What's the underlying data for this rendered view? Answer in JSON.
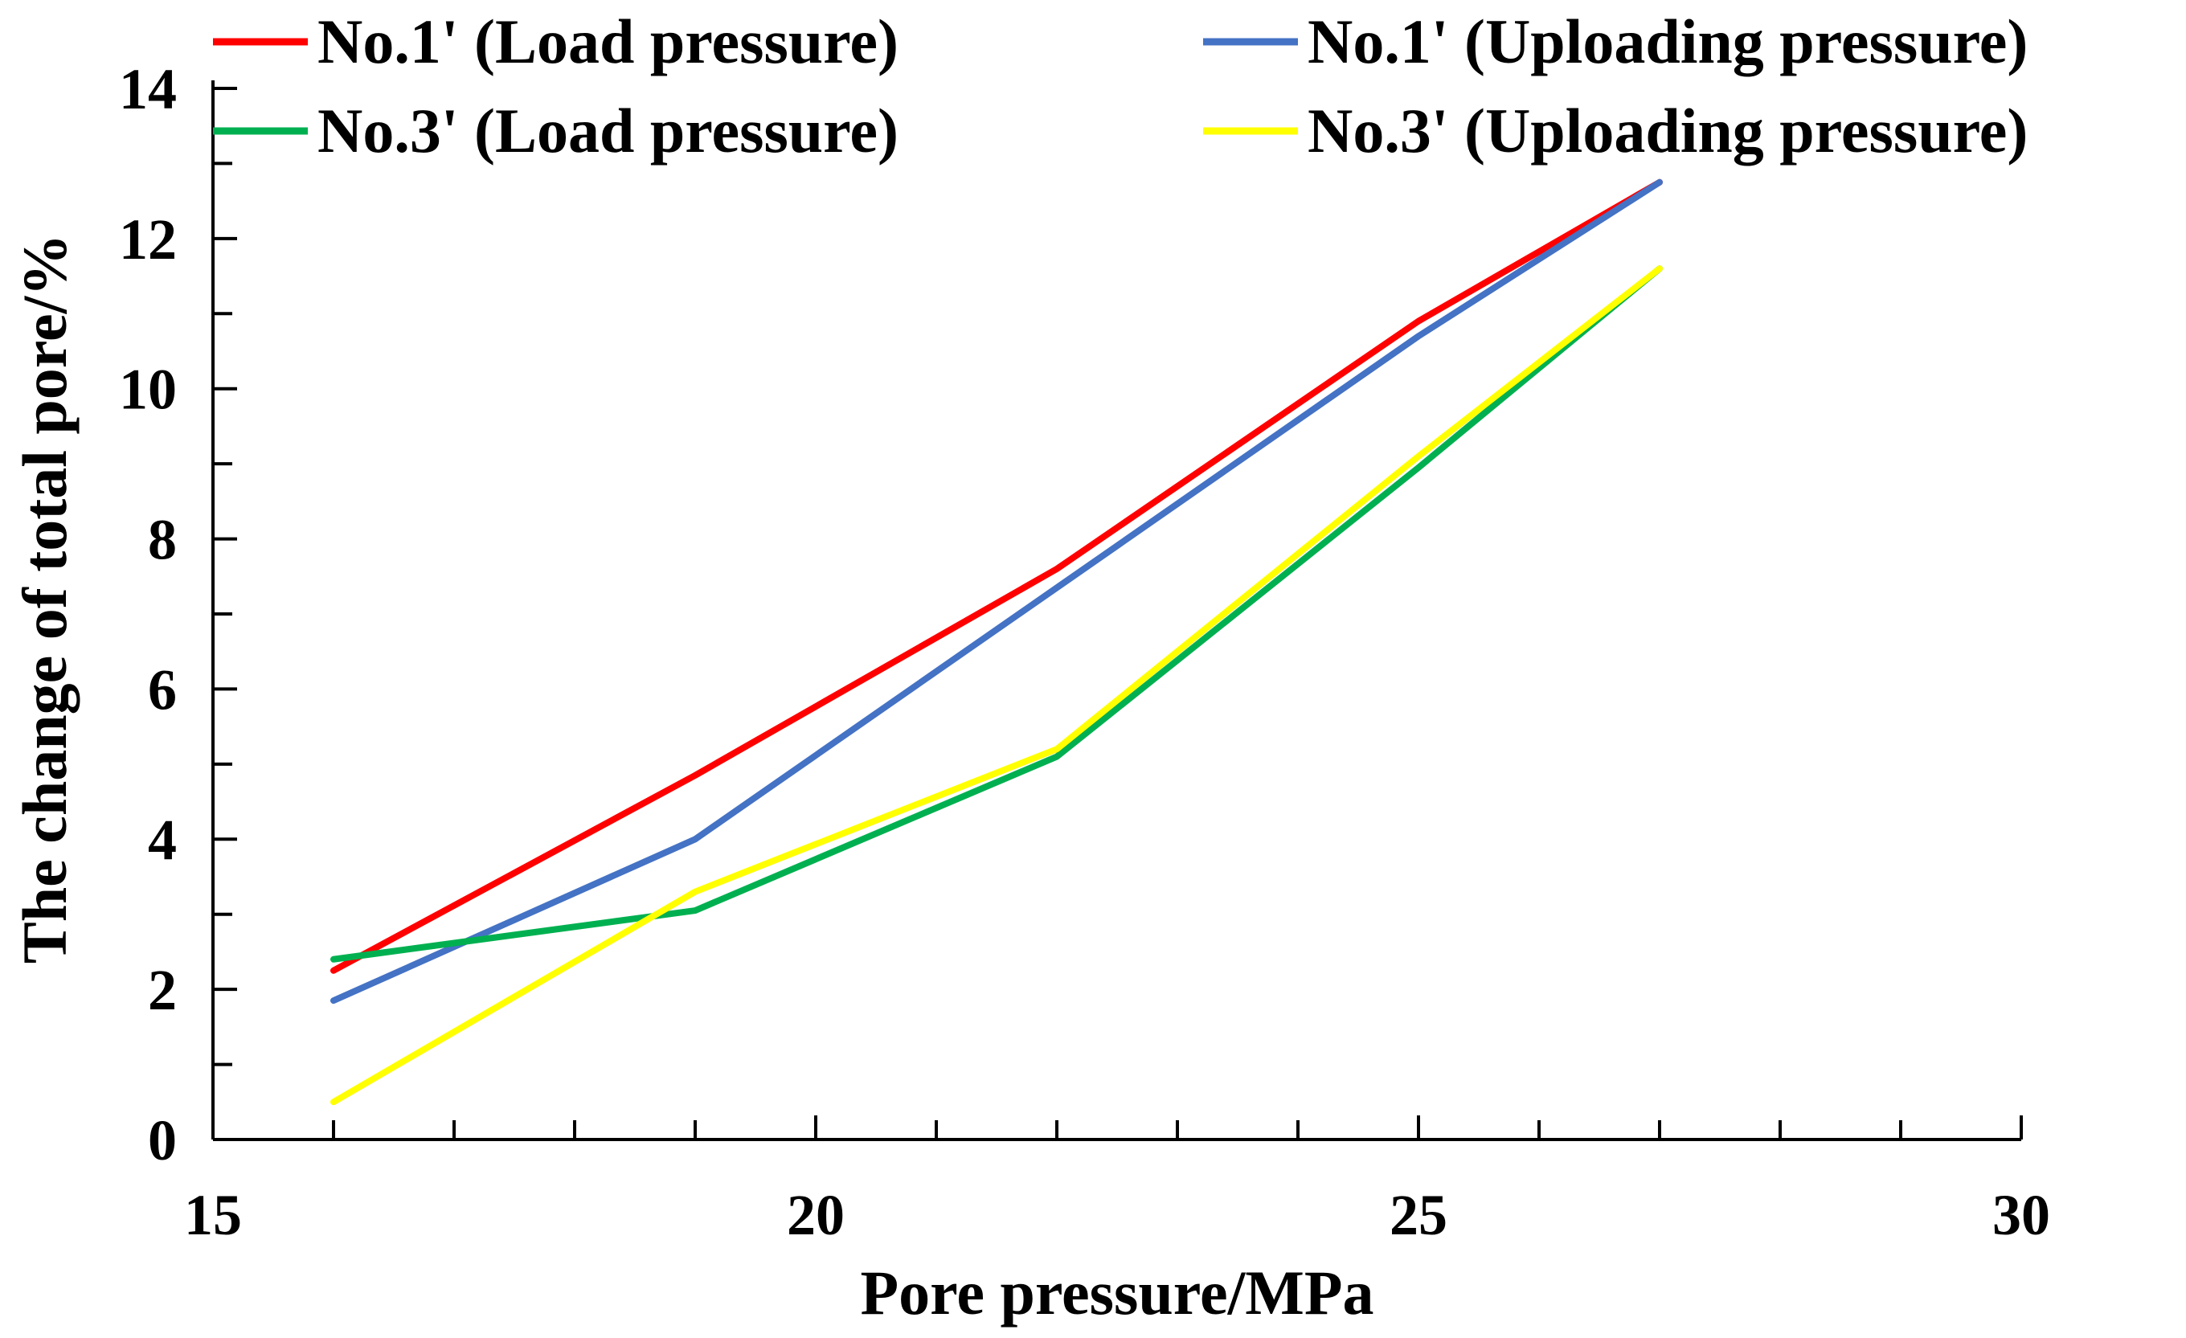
{
  "chart_data": {
    "type": "line",
    "title": "",
    "xlabel": "Pore pressure/MPa",
    "ylabel": "The change of total pore/%",
    "xlim": [
      15,
      30
    ],
    "ylim": [
      0,
      14
    ],
    "x_ticks": [
      15,
      20,
      25,
      30
    ],
    "x_minor_step": 1,
    "y_ticks": [
      0,
      2,
      4,
      6,
      8,
      10,
      12,
      14
    ],
    "y_minor_step": 1,
    "x_tick_labels": [
      "15",
      "20",
      "25",
      "30"
    ],
    "y_tick_labels": [
      "0",
      "2",
      "4",
      "6",
      "8",
      "10",
      "12",
      "14"
    ],
    "grid": false,
    "legend_position": "top",
    "x": [
      16,
      19,
      22,
      25,
      27
    ],
    "series": [
      {
        "name": "No.1' (Load pressure)",
        "color": "#ff0000",
        "values": [
          2.25,
          4.85,
          7.6,
          10.9,
          12.75
        ]
      },
      {
        "name": "No.1' (Uploading pressure)",
        "color": "#4472c4",
        "values": [
          1.85,
          4.0,
          7.35,
          10.7,
          12.75
        ]
      },
      {
        "name": "No.3' (Load pressure)",
        "color": "#00b050",
        "values": [
          2.4,
          3.05,
          5.1,
          8.95,
          11.6
        ]
      },
      {
        "name": "No.3' (Uploading pressure)",
        "color": "#ffff00",
        "values": [
          0.5,
          3.3,
          5.2,
          9.1,
          11.6
        ]
      }
    ]
  }
}
